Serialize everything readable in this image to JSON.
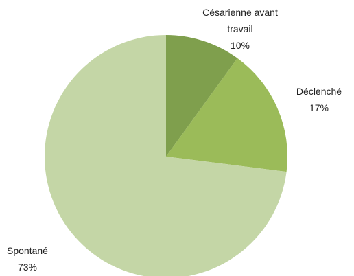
{
  "chart_data": {
    "type": "pie",
    "categories": [
      "Césarienne avant travail",
      "Déclenché",
      "Spontané"
    ],
    "values": [
      10,
      17,
      73
    ],
    "value_labels": [
      "10%",
      "17%",
      "73%"
    ],
    "colors": [
      "#7f9f4d",
      "#9bbb59",
      "#c4d6a6"
    ]
  }
}
